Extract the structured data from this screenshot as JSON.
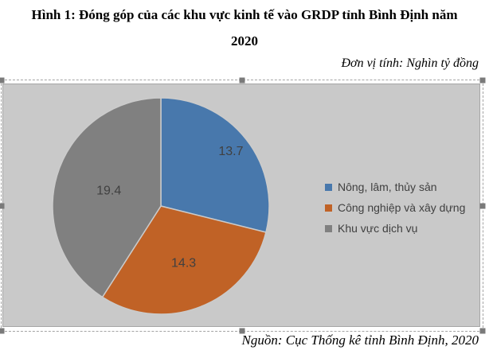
{
  "title": {
    "line1": "Hình 1: Đóng góp của các khu vực kinh tế vào GRDP tỉnh Bình Định năm",
    "line2": "2020"
  },
  "unit_note": "Đơn vị tính: Nghìn tỷ đồng",
  "source_note": "Nguồn: Cục Thống kê tỉnh Bình Định, 2020",
  "chart_data": {
    "type": "pie",
    "title": "Đóng góp của các khu vực kinh tế vào GRDP tỉnh Bình Định năm 2020",
    "unit": "Nghìn tỷ đồng",
    "start_angle_deg": 0,
    "direction": "clockwise",
    "legend_position": "right",
    "data_labels": "values-inside",
    "slices": [
      {
        "label": "Nông, lâm, thủy sản",
        "value": 13.7,
        "color": "#4878AC"
      },
      {
        "label": "Công nghiệp và xây dựng",
        "value": 14.3,
        "color": "#C06226"
      },
      {
        "label": "Khu vực dịch vụ",
        "value": 19.4,
        "color": "#808080"
      }
    ]
  },
  "colors": {
    "page_bg": "#FFFFFF",
    "chart_area_bg": "#C9C9C9",
    "chart_area_border": "#A6A6A6",
    "slice_separator": "#CBCBCB",
    "label_text": "#404040",
    "selection_handle": "#7A7A7A"
  }
}
